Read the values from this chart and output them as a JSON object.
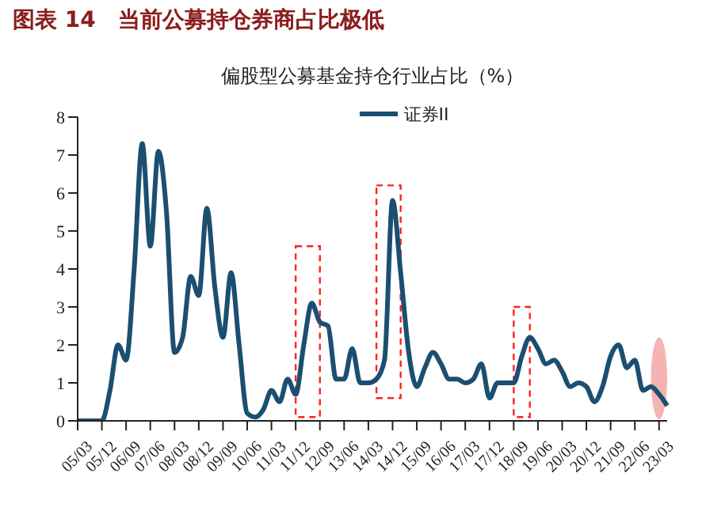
{
  "chart_data": {
    "type": "line",
    "title": "图表 14　当前公募持仓券商占比极低",
    "subtitle": "偏股型公募基金持仓行业占比（%）",
    "categories": [
      "05/03",
      null,
      null,
      "05/12",
      null,
      null,
      "06/09",
      null,
      null,
      "07/06",
      null,
      null,
      "08/03",
      null,
      null,
      "08/12",
      null,
      null,
      "09/09",
      null,
      null,
      "10/06",
      null,
      null,
      "11/03",
      null,
      null,
      "11/12",
      null,
      null,
      "12/09",
      null,
      null,
      "13/06",
      null,
      null,
      "14/03",
      null,
      null,
      "14/12",
      null,
      null,
      "15/09",
      null,
      null,
      "16/06",
      null,
      null,
      "17/03",
      null,
      null,
      "17/12",
      null,
      null,
      "18/09",
      null,
      null,
      "19/06",
      null,
      null,
      "20/03",
      null,
      null,
      "20/12",
      null,
      null,
      "21/09",
      null,
      null,
      "22/06",
      null,
      null,
      "23/03",
      null
    ],
    "series": [
      {
        "name": "证券II",
        "color": "#1b4f72",
        "values": [
          0,
          0,
          0,
          0,
          0.8,
          2.0,
          1.6,
          4.0,
          7.3,
          4.6,
          7.1,
          5.5,
          1.8,
          2.2,
          3.8,
          3.3,
          5.6,
          3.5,
          2.2,
          3.9,
          2.0,
          0.2,
          0.1,
          0.3,
          0.8,
          0.5,
          1.1,
          0.7,
          2.0,
          3.1,
          2.6,
          2.5,
          1.1,
          1.1,
          1.9,
          1.0,
          1.0,
          1.1,
          1.6,
          5.8,
          3.9,
          1.8,
          0.9,
          1.4,
          1.8,
          1.5,
          1.1,
          1.1,
          1.0,
          1.1,
          1.5,
          0.6,
          1.0,
          1.0,
          1.0,
          1.7,
          2.2,
          1.9,
          1.5,
          1.6,
          1.3,
          0.9,
          1.0,
          0.9,
          0.5,
          0.9,
          1.7,
          2.0,
          1.4,
          1.6,
          0.8,
          0.9,
          0.7,
          0.4
        ]
      }
    ],
    "ylim": [
      0,
      8
    ],
    "yticks": [
      0,
      1,
      2,
      3,
      4,
      5,
      6,
      7,
      8
    ],
    "legend": "top"
  }
}
